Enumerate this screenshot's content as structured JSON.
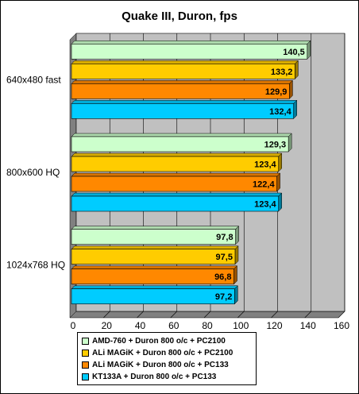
{
  "chart_data": {
    "type": "bar",
    "orientation": "horizontal",
    "title": "Quake III, Duron, fps",
    "xlabel": "",
    "ylabel": "",
    "xlim": [
      0,
      160
    ],
    "xticks": [
      "0",
      "20",
      "40",
      "60",
      "80",
      "100",
      "120",
      "140",
      "160"
    ],
    "grid": true,
    "legend_position": "bottom",
    "categories": [
      "640x480 fast",
      "800x600 HQ",
      "1024x768 HQ"
    ],
    "series": [
      {
        "name": "AMD-760 + Duron 800 o/c + PC2100",
        "color": "#ccffcc",
        "values": [
          140.5,
          129.3,
          97.8
        ],
        "labels": [
          "140,5",
          "129,3",
          "97,8"
        ]
      },
      {
        "name": "ALi MAGiK + Duron 800 o/c + PC2100",
        "color": "#ffcc00",
        "values": [
          133.2,
          123.4,
          97.5
        ],
        "labels": [
          "133,2",
          "123,4",
          "97,5"
        ]
      },
      {
        "name": "ALi MAGiK + Duron 800 o/c + PC133",
        "color": "#ff8800",
        "values": [
          129.9,
          122.4,
          96.8
        ],
        "labels": [
          "129,9",
          "122,4",
          "96,8"
        ]
      },
      {
        "name": "KT133A + Duron 800 o/c + PC133",
        "color": "#00ccff",
        "values": [
          132.4,
          123.4,
          97.2
        ],
        "labels": [
          "132,4",
          "123,4",
          "97,2"
        ]
      }
    ]
  }
}
